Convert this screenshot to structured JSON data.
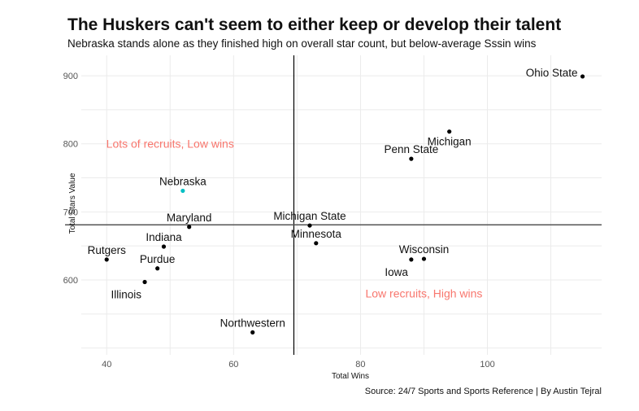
{
  "chart_data": {
    "type": "scatter",
    "title": "The Huskers can't seem to either keep or develop their talent",
    "subtitle": "Nebraska stands alone as they finished high on overall star count, but below-average Sssin wins",
    "xlabel": "Total Wins",
    "ylabel": "Total Stars Value",
    "caption": "Source: 24/7 Sports and Sports Reference | By Austin Tejral",
    "xlim": [
      36,
      118
    ],
    "ylim": [
      490,
      930
    ],
    "x_ticks": [
      40,
      60,
      80,
      100
    ],
    "y_ticks": [
      600,
      700,
      800,
      900
    ],
    "grid": true,
    "reference_lines": {
      "x": 69.5,
      "y": 681
    },
    "colors": {
      "point": "#000000",
      "highlight": "#00BFC4",
      "annotation": "#F8766D",
      "reference_line": "#000000",
      "h_reference_line": "#555555"
    },
    "annotations": [
      {
        "text": "Lots of recruits, Low wins",
        "x": 50,
        "y": 800
      },
      {
        "text": "Low recruits, High wins",
        "x": 90,
        "y": 580
      }
    ],
    "points": [
      {
        "label": "Ohio State",
        "x": 115,
        "y": 899,
        "label_pos": "left",
        "highlight": false
      },
      {
        "label": "Michigan",
        "x": 94,
        "y": 818,
        "label_pos": "below",
        "highlight": false
      },
      {
        "label": "Penn State",
        "x": 88,
        "y": 778,
        "label_pos": "above",
        "highlight": false
      },
      {
        "label": "Nebraska",
        "x": 52,
        "y": 731,
        "label_pos": "above",
        "highlight": true
      },
      {
        "label": "Maryland",
        "x": 53,
        "y": 678,
        "label_pos": "above",
        "highlight": false
      },
      {
        "label": "Michigan State",
        "x": 72,
        "y": 680,
        "label_pos": "above",
        "highlight": false
      },
      {
        "label": "Minnesota",
        "x": 73,
        "y": 654,
        "label_pos": "above",
        "highlight": false
      },
      {
        "label": "Indiana",
        "x": 49,
        "y": 649,
        "label_pos": "above",
        "highlight": false
      },
      {
        "label": "Wisconsin",
        "x": 90,
        "y": 631,
        "label_pos": "above",
        "highlight": false
      },
      {
        "label": "Iowa",
        "x": 88,
        "y": 630,
        "label_pos": "below-left",
        "highlight": false
      },
      {
        "label": "Rutgers",
        "x": 40,
        "y": 630,
        "label_pos": "above",
        "highlight": false
      },
      {
        "label": "Purdue",
        "x": 48,
        "y": 617,
        "label_pos": "above",
        "highlight": false
      },
      {
        "label": "Illinois",
        "x": 46,
        "y": 597,
        "label_pos": "below-left",
        "highlight": false
      },
      {
        "label": "Northwestern",
        "x": 63,
        "y": 523,
        "label_pos": "above",
        "highlight": false
      }
    ]
  }
}
